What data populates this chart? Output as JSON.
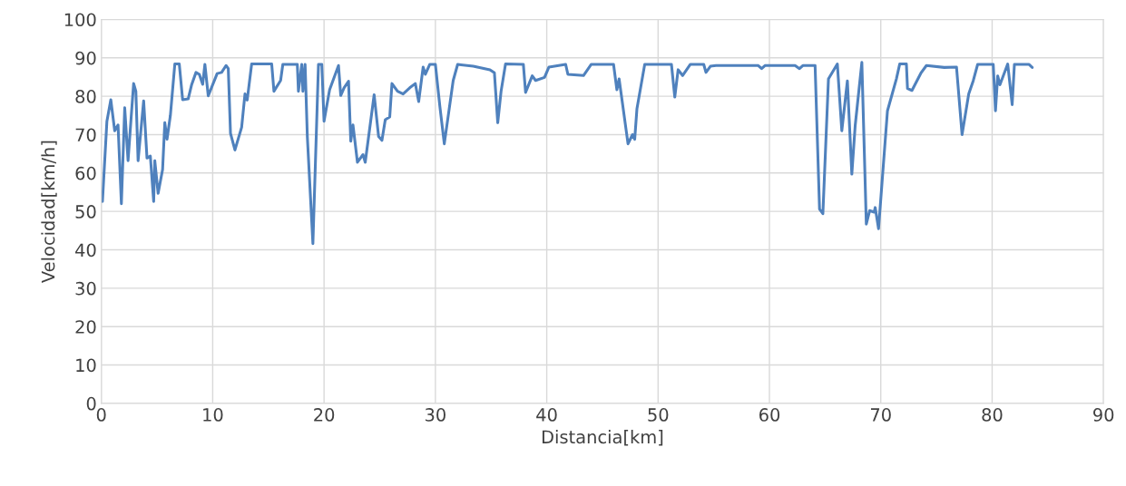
{
  "chart_data": {
    "type": "line",
    "xlabel": "Distancia[km]",
    "ylabel": "Velocidad[km/h]",
    "xlim": [
      0,
      90
    ],
    "xticks": [
      0,
      10,
      20,
      30,
      40,
      50,
      60,
      70,
      80,
      90
    ],
    "ylim": [
      0,
      100
    ],
    "yticks": [
      0,
      10,
      20,
      30,
      40,
      50,
      60,
      70,
      80,
      90,
      100
    ],
    "grid": true,
    "marker": "none",
    "line_style": "solid",
    "series": [
      {
        "color": "#4f81bd",
        "x": [
          0.1,
          0.5,
          0.85,
          1.2,
          1.5,
          1.8,
          2.1,
          2.4,
          2.7,
          2.9,
          3.1,
          3.3,
          3.8,
          4.1,
          4.4,
          4.7,
          4.8,
          5.1,
          5.5,
          5.7,
          5.9,
          6.2,
          6.6,
          7.0,
          7.3,
          7.8,
          8.1,
          8.5,
          8.8,
          9.1,
          9.3,
          9.6,
          10.4,
          10.8,
          11.2,
          11.4,
          11.6,
          12.0,
          12.6,
          12.9,
          13.1,
          13.5,
          15.3,
          15.5,
          16.1,
          16.3,
          17.6,
          17.7,
          18.0,
          18.1,
          18.3,
          18.5,
          19.0,
          19.5,
          19.8,
          20.0,
          20.5,
          21.3,
          21.5,
          21.8,
          22.2,
          22.4,
          22.6,
          23.0,
          23.5,
          23.7,
          24.5,
          24.9,
          25.2,
          25.5,
          25.9,
          26.1,
          26.6,
          27.1,
          27.7,
          28.2,
          28.5,
          28.9,
          29.1,
          29.5,
          30.0,
          30.4,
          30.8,
          31.6,
          32.0,
          33.4,
          34.9,
          35.3,
          35.6,
          35.9,
          36.3,
          37.9,
          38.1,
          38.7,
          39.0,
          39.8,
          40.2,
          41.7,
          41.9,
          43.3,
          44.0,
          46.0,
          46.3,
          46.5,
          47.3,
          47.7,
          47.9,
          48.1,
          48.8,
          51.2,
          51.5,
          51.8,
          52.2,
          52.9,
          54.1,
          54.3,
          54.7,
          55.2,
          59.0,
          59.3,
          59.6,
          62.3,
          62.7,
          63.0,
          64.1,
          64.5,
          64.8,
          65.3,
          66.1,
          66.5,
          67.0,
          67.4,
          67.7,
          68.3,
          68.7,
          69.0,
          69.4,
          69.5,
          69.8,
          70.6,
          71.4,
          71.7,
          72.3,
          72.4,
          72.8,
          73.6,
          74.1,
          75.7,
          76.8,
          77.3,
          77.9,
          78.3,
          78.7,
          80.1,
          80.3,
          80.5,
          80.7,
          81.4,
          81.8,
          82.0,
          83.3,
          83.6
        ],
        "values": [
          52.6,
          73.5,
          79.1,
          71,
          72.5,
          52,
          77,
          63.2,
          75.4,
          83.3,
          81.3,
          63.2,
          78.8,
          63.9,
          64.4,
          52.6,
          63.2,
          54.7,
          60.9,
          73.1,
          68.8,
          75,
          88.4,
          88.4,
          79.1,
          79.3,
          82.9,
          86.2,
          85.7,
          83.1,
          88.3,
          80.1,
          85.9,
          86.2,
          88,
          87.2,
          70.3,
          66,
          71.9,
          80.6,
          79,
          88.4,
          88.4,
          81.3,
          84.1,
          88.3,
          88.3,
          81.3,
          88.3,
          81.3,
          88.3,
          69.5,
          41.6,
          88.3,
          88.3,
          73.5,
          81.7,
          88,
          80.2,
          82.2,
          83.9,
          68.3,
          72.5,
          62.8,
          64.8,
          62.8,
          80.4,
          69.5,
          68.5,
          73.9,
          74.6,
          83.3,
          81.3,
          80.6,
          82.2,
          83.3,
          78.6,
          87.6,
          85.7,
          88.3,
          88.3,
          77.4,
          67.6,
          84.1,
          88.3,
          87.8,
          86.9,
          86.1,
          73.1,
          81.3,
          88.4,
          88.3,
          81,
          85.3,
          84.1,
          84.9,
          87.6,
          88.3,
          85.7,
          85.4,
          88.3,
          88.3,
          81.7,
          84.5,
          67.6,
          70,
          68.8,
          76.7,
          88.3,
          88.3,
          79.8,
          86.9,
          85.4,
          88.3,
          88.3,
          86.2,
          87.8,
          88,
          88,
          87.2,
          88,
          88,
          87.2,
          88,
          88,
          50.6,
          49.4,
          84.5,
          88.4,
          71,
          84,
          59.7,
          72.3,
          88.8,
          46.7,
          50.2,
          49.8,
          51,
          45.5,
          76.2,
          84.5,
          88.4,
          88.4,
          82,
          81.5,
          86,
          88,
          87.5,
          87.6,
          70,
          80.6,
          84,
          88.3,
          88.3,
          76.2,
          85.3,
          83,
          88.4,
          77.8,
          88.3,
          88.3,
          87.5
        ]
      }
    ]
  }
}
